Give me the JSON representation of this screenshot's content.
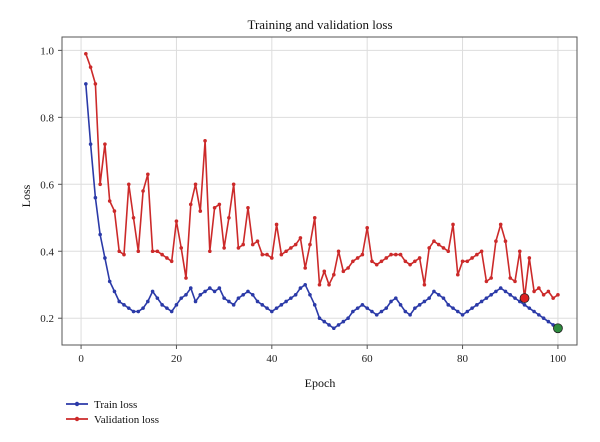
{
  "chart_data": {
    "type": "line",
    "title": "Training and validation loss",
    "xlabel": "Epoch",
    "ylabel": "Loss",
    "xlim": [
      -4,
      104
    ],
    "ylim": [
      0.12,
      1.04
    ],
    "xticks": [
      0,
      20,
      40,
      60,
      80,
      100
    ],
    "yticks": [
      0.2,
      0.4,
      0.6,
      0.8,
      1.0
    ],
    "xtick_labels": [
      "0",
      "20",
      "40",
      "60",
      "80",
      "100"
    ],
    "ytick_labels": [
      "0.2",
      "0.4",
      "0.6",
      "0.8",
      "1.0"
    ],
    "grid": true,
    "legend_position": "below",
    "series": [
      {
        "name": "Train loss",
        "color": "#2b3aa8",
        "x": [
          1,
          2,
          3,
          4,
          5,
          6,
          7,
          8,
          9,
          10,
          11,
          12,
          13,
          14,
          15,
          16,
          17,
          18,
          19,
          20,
          21,
          22,
          23,
          24,
          25,
          26,
          27,
          28,
          29,
          30,
          31,
          32,
          33,
          34,
          35,
          36,
          37,
          38,
          39,
          40,
          41,
          42,
          43,
          44,
          45,
          46,
          47,
          48,
          49,
          50,
          51,
          52,
          53,
          54,
          55,
          56,
          57,
          58,
          59,
          60,
          61,
          62,
          63,
          64,
          65,
          66,
          67,
          68,
          69,
          70,
          71,
          72,
          73,
          74,
          75,
          76,
          77,
          78,
          79,
          80,
          81,
          82,
          83,
          84,
          85,
          86,
          87,
          88,
          89,
          90,
          91,
          92,
          93,
          94,
          95,
          96,
          97,
          98,
          99,
          100
        ],
        "values": [
          0.9,
          0.72,
          0.56,
          0.45,
          0.38,
          0.31,
          0.28,
          0.25,
          0.24,
          0.23,
          0.22,
          0.22,
          0.23,
          0.25,
          0.28,
          0.26,
          0.24,
          0.23,
          0.22,
          0.24,
          0.26,
          0.27,
          0.29,
          0.25,
          0.27,
          0.28,
          0.29,
          0.28,
          0.29,
          0.26,
          0.25,
          0.24,
          0.26,
          0.27,
          0.28,
          0.27,
          0.25,
          0.24,
          0.23,
          0.22,
          0.23,
          0.24,
          0.25,
          0.26,
          0.27,
          0.29,
          0.3,
          0.27,
          0.24,
          0.2,
          0.19,
          0.18,
          0.17,
          0.18,
          0.19,
          0.2,
          0.22,
          0.23,
          0.24,
          0.23,
          0.22,
          0.21,
          0.22,
          0.23,
          0.25,
          0.26,
          0.24,
          0.22,
          0.21,
          0.23,
          0.24,
          0.25,
          0.26,
          0.28,
          0.27,
          0.26,
          0.24,
          0.23,
          0.22,
          0.21,
          0.22,
          0.23,
          0.24,
          0.25,
          0.26,
          0.27,
          0.28,
          0.29,
          0.28,
          0.27,
          0.26,
          0.25,
          0.24,
          0.23,
          0.22,
          0.21,
          0.2,
          0.19,
          0.18,
          0.17
        ],
        "highlight": {
          "x": 100,
          "y": 0.17,
          "color": "#2e8b3e"
        }
      },
      {
        "name": "Validation loss",
        "color": "#cc2a2a",
        "x": [
          1,
          2,
          3,
          4,
          5,
          6,
          7,
          8,
          9,
          10,
          11,
          12,
          13,
          14,
          15,
          16,
          17,
          18,
          19,
          20,
          21,
          22,
          23,
          24,
          25,
          26,
          27,
          28,
          29,
          30,
          31,
          32,
          33,
          34,
          35,
          36,
          37,
          38,
          39,
          40,
          41,
          42,
          43,
          44,
          45,
          46,
          47,
          48,
          49,
          50,
          51,
          52,
          53,
          54,
          55,
          56,
          57,
          58,
          59,
          60,
          61,
          62,
          63,
          64,
          65,
          66,
          67,
          68,
          69,
          70,
          71,
          72,
          73,
          74,
          75,
          76,
          77,
          78,
          79,
          80,
          81,
          82,
          83,
          84,
          85,
          86,
          87,
          88,
          89,
          90,
          91,
          92,
          93,
          94,
          95,
          96,
          97,
          98,
          99,
          100
        ],
        "values": [
          0.99,
          0.95,
          0.9,
          0.6,
          0.72,
          0.55,
          0.52,
          0.4,
          0.39,
          0.6,
          0.5,
          0.4,
          0.58,
          0.63,
          0.4,
          0.4,
          0.39,
          0.38,
          0.37,
          0.49,
          0.41,
          0.32,
          0.54,
          0.6,
          0.52,
          0.73,
          0.4,
          0.53,
          0.54,
          0.41,
          0.5,
          0.6,
          0.41,
          0.42,
          0.53,
          0.42,
          0.43,
          0.39,
          0.39,
          0.38,
          0.48,
          0.39,
          0.4,
          0.41,
          0.42,
          0.44,
          0.35,
          0.42,
          0.5,
          0.3,
          0.34,
          0.3,
          0.33,
          0.4,
          0.34,
          0.35,
          0.37,
          0.38,
          0.39,
          0.47,
          0.37,
          0.36,
          0.37,
          0.38,
          0.39,
          0.39,
          0.39,
          0.37,
          0.36,
          0.37,
          0.38,
          0.3,
          0.41,
          0.43,
          0.42,
          0.41,
          0.4,
          0.48,
          0.33,
          0.37,
          0.37,
          0.38,
          0.39,
          0.4,
          0.31,
          0.32,
          0.43,
          0.48,
          0.43,
          0.32,
          0.31,
          0.4,
          0.26,
          0.38,
          0.28,
          0.29,
          0.27,
          0.28,
          0.26,
          0.27
        ],
        "highlight": {
          "x": 93,
          "y": 0.26,
          "color": "#dd2222"
        }
      }
    ]
  }
}
